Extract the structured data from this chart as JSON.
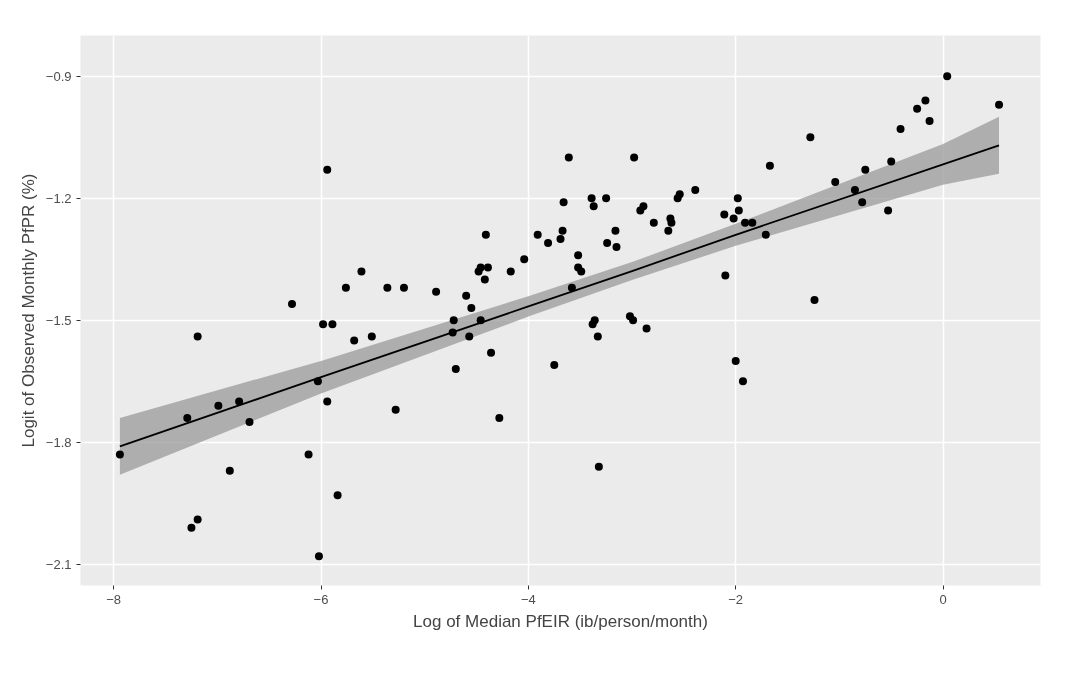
{
  "chart_data": {
    "type": "scatter",
    "xlabel": "Log of Median PfEIR (ib/person/month)",
    "ylabel": "Logit of Observed Monthly PfPR (%)",
    "xlim": [
      -8.32,
      0.94
    ],
    "ylim": [
      -2.152,
      -0.8
    ],
    "xticks": [
      {
        "value": -8,
        "label": "−8"
      },
      {
        "value": -6,
        "label": "−6"
      },
      {
        "value": -4,
        "label": "−4"
      },
      {
        "value": -2,
        "label": "−2"
      },
      0
    ],
    "yticks": [
      {
        "value": -2.1,
        "label": "−2.1"
      },
      {
        "value": -1.8,
        "label": "−1.8"
      },
      {
        "value": -1.5,
        "label": "−1.5"
      },
      {
        "value": -1.2,
        "label": "−1.2"
      },
      {
        "value": -0.9,
        "label": "−0.9"
      }
    ],
    "grid": true,
    "series": [
      {
        "marker": "circle",
        "color": "#000000",
        "x": [
          -7.94,
          -7.29,
          -7.25,
          -7.19,
          -7.19,
          -6.99,
          -6.79,
          -6.69,
          -6.88,
          -6.28,
          -6.12,
          -6.03,
          -6.02,
          -5.98,
          -5.94,
          -5.94,
          -5.89,
          -5.84,
          -5.76,
          -5.68,
          -5.61,
          -5.51,
          -5.36,
          -5.28,
          -5.2,
          -4.89,
          -4.73,
          -4.72,
          -4.7,
          -4.6,
          -4.57,
          -4.55,
          -4.48,
          -4.46,
          -4.46,
          -4.42,
          -4.41,
          -4.39,
          -4.36,
          -4.28,
          -4.17,
          -4.04,
          -3.91,
          -3.81,
          -3.75,
          -3.69,
          -3.67,
          -3.66,
          -3.61,
          -3.58,
          -3.52,
          -3.52,
          -3.49,
          -3.39,
          -3.38,
          -3.37,
          -3.36,
          -3.33,
          -3.32,
          -3.25,
          -3.24,
          -3.16,
          -3.15,
          -3.02,
          -2.99,
          -2.98,
          -2.92,
          -2.89,
          -2.86,
          -2.79,
          -2.65,
          -2.63,
          -2.62,
          -2.56,
          -2.54,
          -2.39,
          -2.11,
          -2.1,
          -2.02,
          -1.98,
          -2.0,
          -1.97,
          -1.93,
          -1.91,
          -1.84,
          -1.71,
          -1.67,
          -1.28,
          -1.24,
          -1.04,
          -0.85,
          -0.78,
          -0.75,
          -0.53,
          -0.5,
          -0.41,
          -0.25,
          -0.17,
          -0.13,
          0.04,
          0.54
        ],
        "values": [
          -1.83,
          -1.74,
          -2.01,
          -1.99,
          -1.54,
          -1.71,
          -1.7,
          -1.75,
          -1.87,
          -1.46,
          -1.83,
          -1.65,
          -2.08,
          -1.51,
          -1.13,
          -1.7,
          -1.51,
          -1.93,
          -1.42,
          -1.55,
          -1.38,
          -1.54,
          -1.42,
          -1.72,
          -1.42,
          -1.43,
          -1.53,
          -1.5,
          -1.62,
          -1.44,
          -1.54,
          -1.47,
          -1.38,
          -1.37,
          -1.5,
          -1.4,
          -1.29,
          -1.37,
          -1.58,
          -1.74,
          -1.38,
          -1.35,
          -1.29,
          -1.31,
          -1.61,
          -1.3,
          -1.28,
          -1.21,
          -1.1,
          -1.42,
          -1.34,
          -1.37,
          -1.38,
          -1.2,
          -1.51,
          -1.22,
          -1.5,
          -1.54,
          -1.86,
          -1.2,
          -1.31,
          -1.28,
          -1.32,
          -1.49,
          -1.5,
          -1.1,
          -1.23,
          -1.22,
          -1.52,
          -1.26,
          -1.28,
          -1.25,
          -1.26,
          -1.2,
          -1.19,
          -1.18,
          -1.24,
          -1.39,
          -1.25,
          -1.2,
          -1.6,
          -1.23,
          -1.65,
          -1.26,
          -1.26,
          -1.29,
          -1.12,
          -1.05,
          -1.45,
          -1.16,
          -1.18,
          -1.21,
          -1.13,
          -1.23,
          -1.11,
          -1.03,
          -0.98,
          -0.96,
          -1.01,
          -0.9,
          -0.97
        ]
      },
      {
        "type": "line",
        "marker": "none",
        "color": "#000000",
        "x": [
          -7.94,
          -6,
          -4,
          -3,
          -2,
          0,
          0.54
        ],
        "values": [
          -1.81,
          -1.64,
          -1.466,
          -1.379,
          -1.29,
          -1.117,
          -1.07
        ],
        "lower": [
          -1.88,
          -1.68,
          -1.491,
          -1.401,
          -1.317,
          -1.167,
          -1.14
        ],
        "upper": [
          -1.74,
          -1.6,
          -1.441,
          -1.357,
          -1.263,
          -1.067,
          -1.0
        ]
      }
    ]
  }
}
